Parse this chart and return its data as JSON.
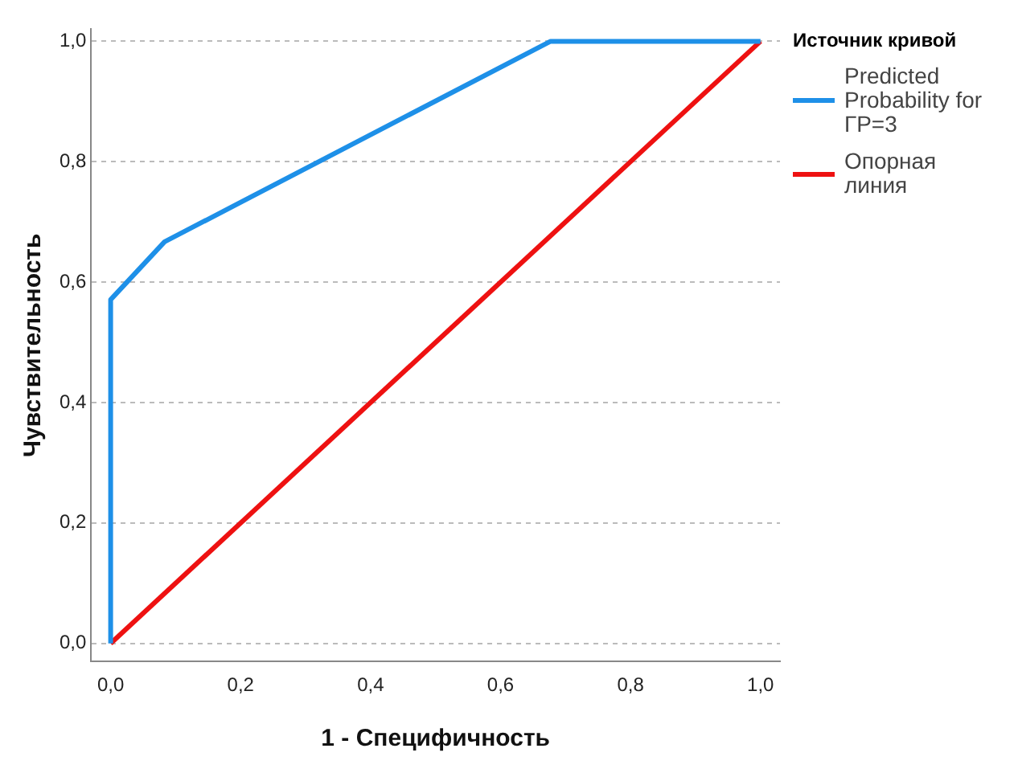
{
  "chart_data": {
    "type": "line",
    "xlabel": "1 - Специфичность",
    "ylabel": "Чувствительность",
    "legend_title": "Источник кривой",
    "legend": "right",
    "grid": "y",
    "marker": "none",
    "xlim": [
      -0.03,
      1.03
    ],
    "ylim": [
      -0.03,
      1.02
    ],
    "xticks": [
      {
        "value": 0,
        "label": "0,0"
      },
      {
        "value": 0.2,
        "label": "0,2"
      },
      {
        "value": 0.4,
        "label": "0,4"
      },
      {
        "value": 0.6,
        "label": "0,6"
      },
      {
        "value": 0.8,
        "label": "0,8"
      },
      {
        "value": 1,
        "label": "1,0"
      }
    ],
    "yticks": [
      {
        "value": 0,
        "label": "0,0"
      },
      {
        "value": 0.2,
        "label": "0,2"
      },
      {
        "value": 0.4,
        "label": "0,4"
      },
      {
        "value": 0.6,
        "label": "0,6"
      },
      {
        "value": 0.8,
        "label": "0,8"
      },
      {
        "value": 1,
        "label": "1,0"
      }
    ],
    "series": [
      {
        "name": "Predicted Probability for ГР=3",
        "color": "#1e90e8",
        "x": [
          0,
          0,
          0.083,
          0.677,
          1
        ],
        "values": [
          0,
          0.571,
          0.667,
          1,
          1
        ]
      },
      {
        "name": "Опорная линия",
        "color": "#ee1111",
        "x": [
          0,
          1
        ],
        "values": [
          0,
          1
        ]
      }
    ]
  }
}
